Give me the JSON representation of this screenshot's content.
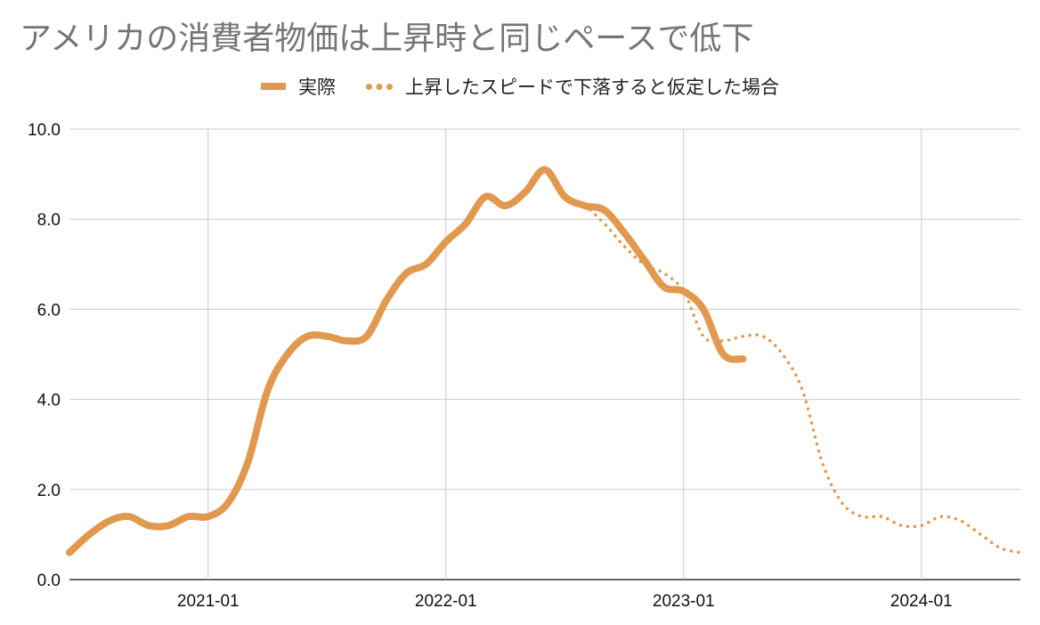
{
  "chart_data": {
    "type": "line",
    "title": "アメリカの消費者物価は上昇時と同じペースで低下",
    "xlabel": "",
    "ylabel": "",
    "ylim": [
      0,
      10
    ],
    "xlim": [
      "2020-06",
      "2024-06"
    ],
    "yticks": [
      "0.0",
      "2.0",
      "4.0",
      "6.0",
      "8.0",
      "10.0"
    ],
    "xticks": [
      "2021-01",
      "2022-01",
      "2023-01",
      "2024-01"
    ],
    "grid": true,
    "legend_position": "top-center",
    "colors": {
      "series": "#e0994f",
      "grid": "#cccccc",
      "axis": "#333333"
    },
    "series": [
      {
        "name": "実際",
        "style": "solid",
        "x": [
          "2020-06",
          "2020-07",
          "2020-08",
          "2020-09",
          "2020-10",
          "2020-11",
          "2020-12",
          "2021-01",
          "2021-02",
          "2021-03",
          "2021-04",
          "2021-05",
          "2021-06",
          "2021-07",
          "2021-08",
          "2021-09",
          "2021-10",
          "2021-11",
          "2021-12",
          "2022-01",
          "2022-02",
          "2022-03",
          "2022-04",
          "2022-05",
          "2022-06",
          "2022-07",
          "2022-08",
          "2022-09",
          "2022-10",
          "2022-11",
          "2022-12",
          "2023-01",
          "2023-02",
          "2023-03",
          "2023-04"
        ],
        "values": [
          0.6,
          1.0,
          1.3,
          1.4,
          1.2,
          1.2,
          1.4,
          1.4,
          1.7,
          2.6,
          4.2,
          5.0,
          5.4,
          5.4,
          5.3,
          5.4,
          6.2,
          6.8,
          7.0,
          7.5,
          7.9,
          8.5,
          8.3,
          8.6,
          9.1,
          8.5,
          8.3,
          8.2,
          7.7,
          7.1,
          6.5,
          6.4,
          6.0,
          5.0,
          4.9
        ]
      },
      {
        "name": "上昇したスピードで下落すると仮定した場合",
        "style": "dotted",
        "x": [
          "2022-07",
          "2022-08",
          "2022-09",
          "2022-10",
          "2022-11",
          "2022-12",
          "2023-01",
          "2023-02",
          "2023-03",
          "2023-04",
          "2023-05",
          "2023-06",
          "2023-07",
          "2023-08",
          "2023-09",
          "2023-10",
          "2023-11",
          "2023-12",
          "2024-01",
          "2024-02",
          "2024-03",
          "2024-04",
          "2024-05",
          "2024-06"
        ],
        "values": [
          8.5,
          8.3,
          7.9,
          7.4,
          7.0,
          6.8,
          6.4,
          5.4,
          5.3,
          5.4,
          5.4,
          5.0,
          4.2,
          2.6,
          1.7,
          1.4,
          1.4,
          1.2,
          1.2,
          1.4,
          1.3,
          1.0,
          0.7,
          0.6
        ]
      }
    ]
  }
}
